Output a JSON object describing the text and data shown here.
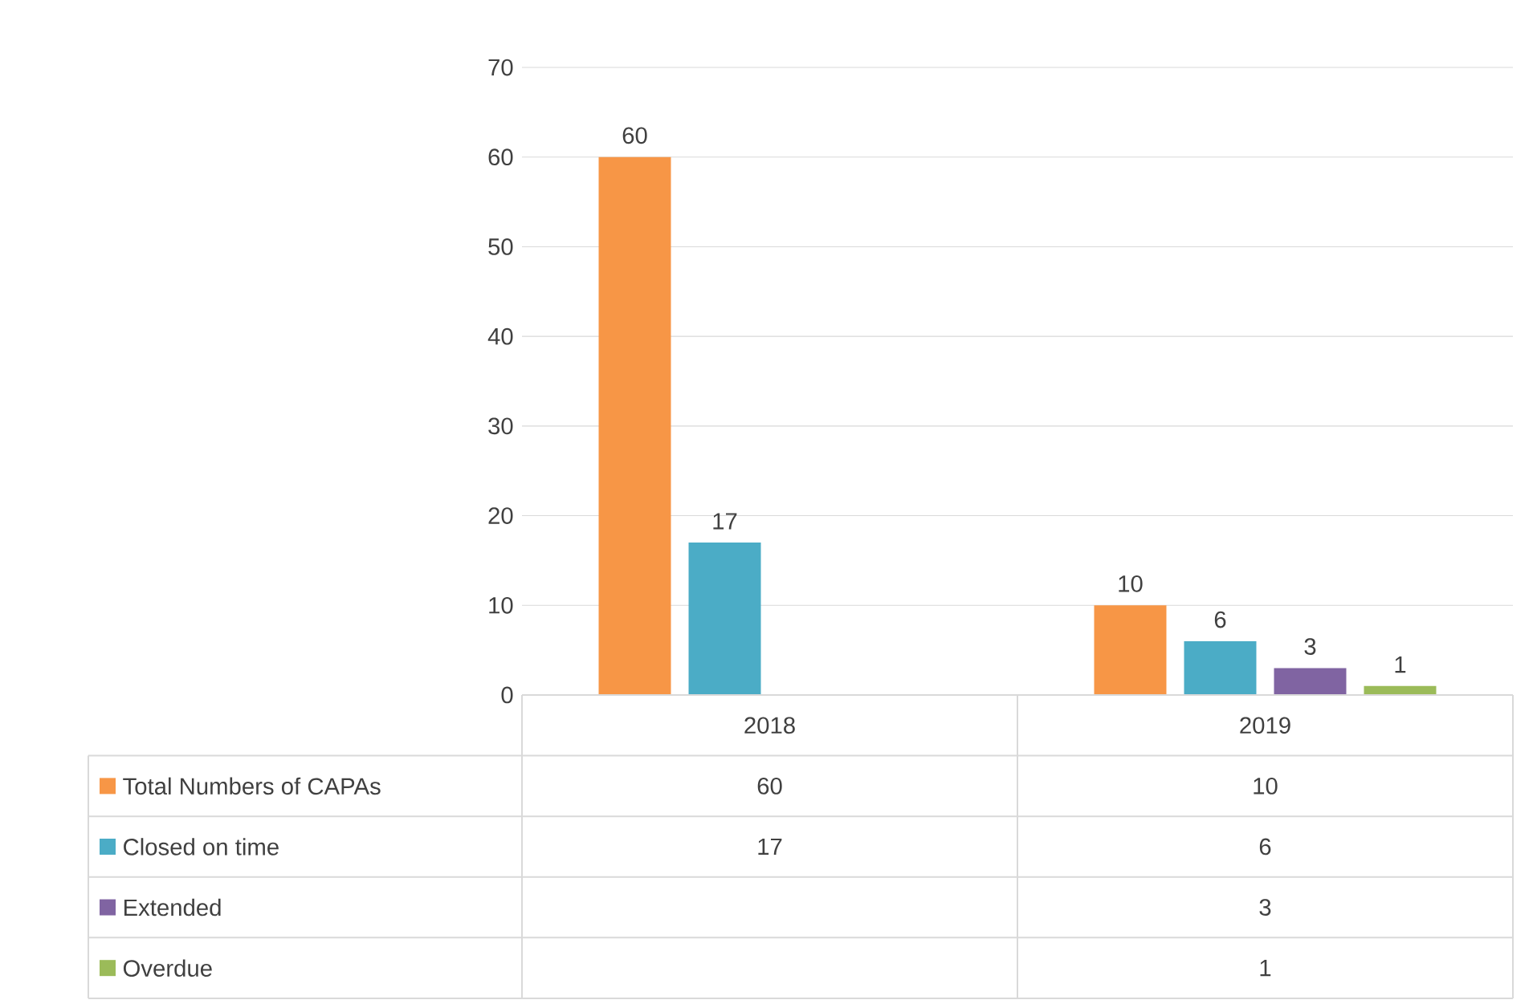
{
  "chart_data": {
    "type": "bar",
    "categories": [
      "2018",
      "2019"
    ],
    "series": [
      {
        "name": "Total Numbers of CAPAs",
        "color": "#f79646",
        "values": [
          60,
          10
        ],
        "value_labels": [
          "60",
          "10"
        ]
      },
      {
        "name": "Closed on time",
        "color": "#4bacc6",
        "values": [
          17,
          6
        ],
        "value_labels": [
          "17",
          "6"
        ]
      },
      {
        "name": "Extended",
        "color": "#8064a2",
        "values": [
          null,
          3
        ],
        "value_labels": [
          null,
          "3"
        ]
      },
      {
        "name": "Overdue",
        "color": "#9bbb59",
        "values": [
          null,
          1
        ],
        "value_labels": [
          null,
          "1"
        ]
      }
    ],
    "annotations": [
      "60",
      "10",
      "17",
      "6",
      "3",
      "1"
    ],
    "ylim": [
      0,
      70
    ],
    "yticks": [
      0,
      10,
      20,
      30,
      40,
      50,
      60,
      70
    ],
    "grid": "y",
    "legend": "bottom"
  }
}
